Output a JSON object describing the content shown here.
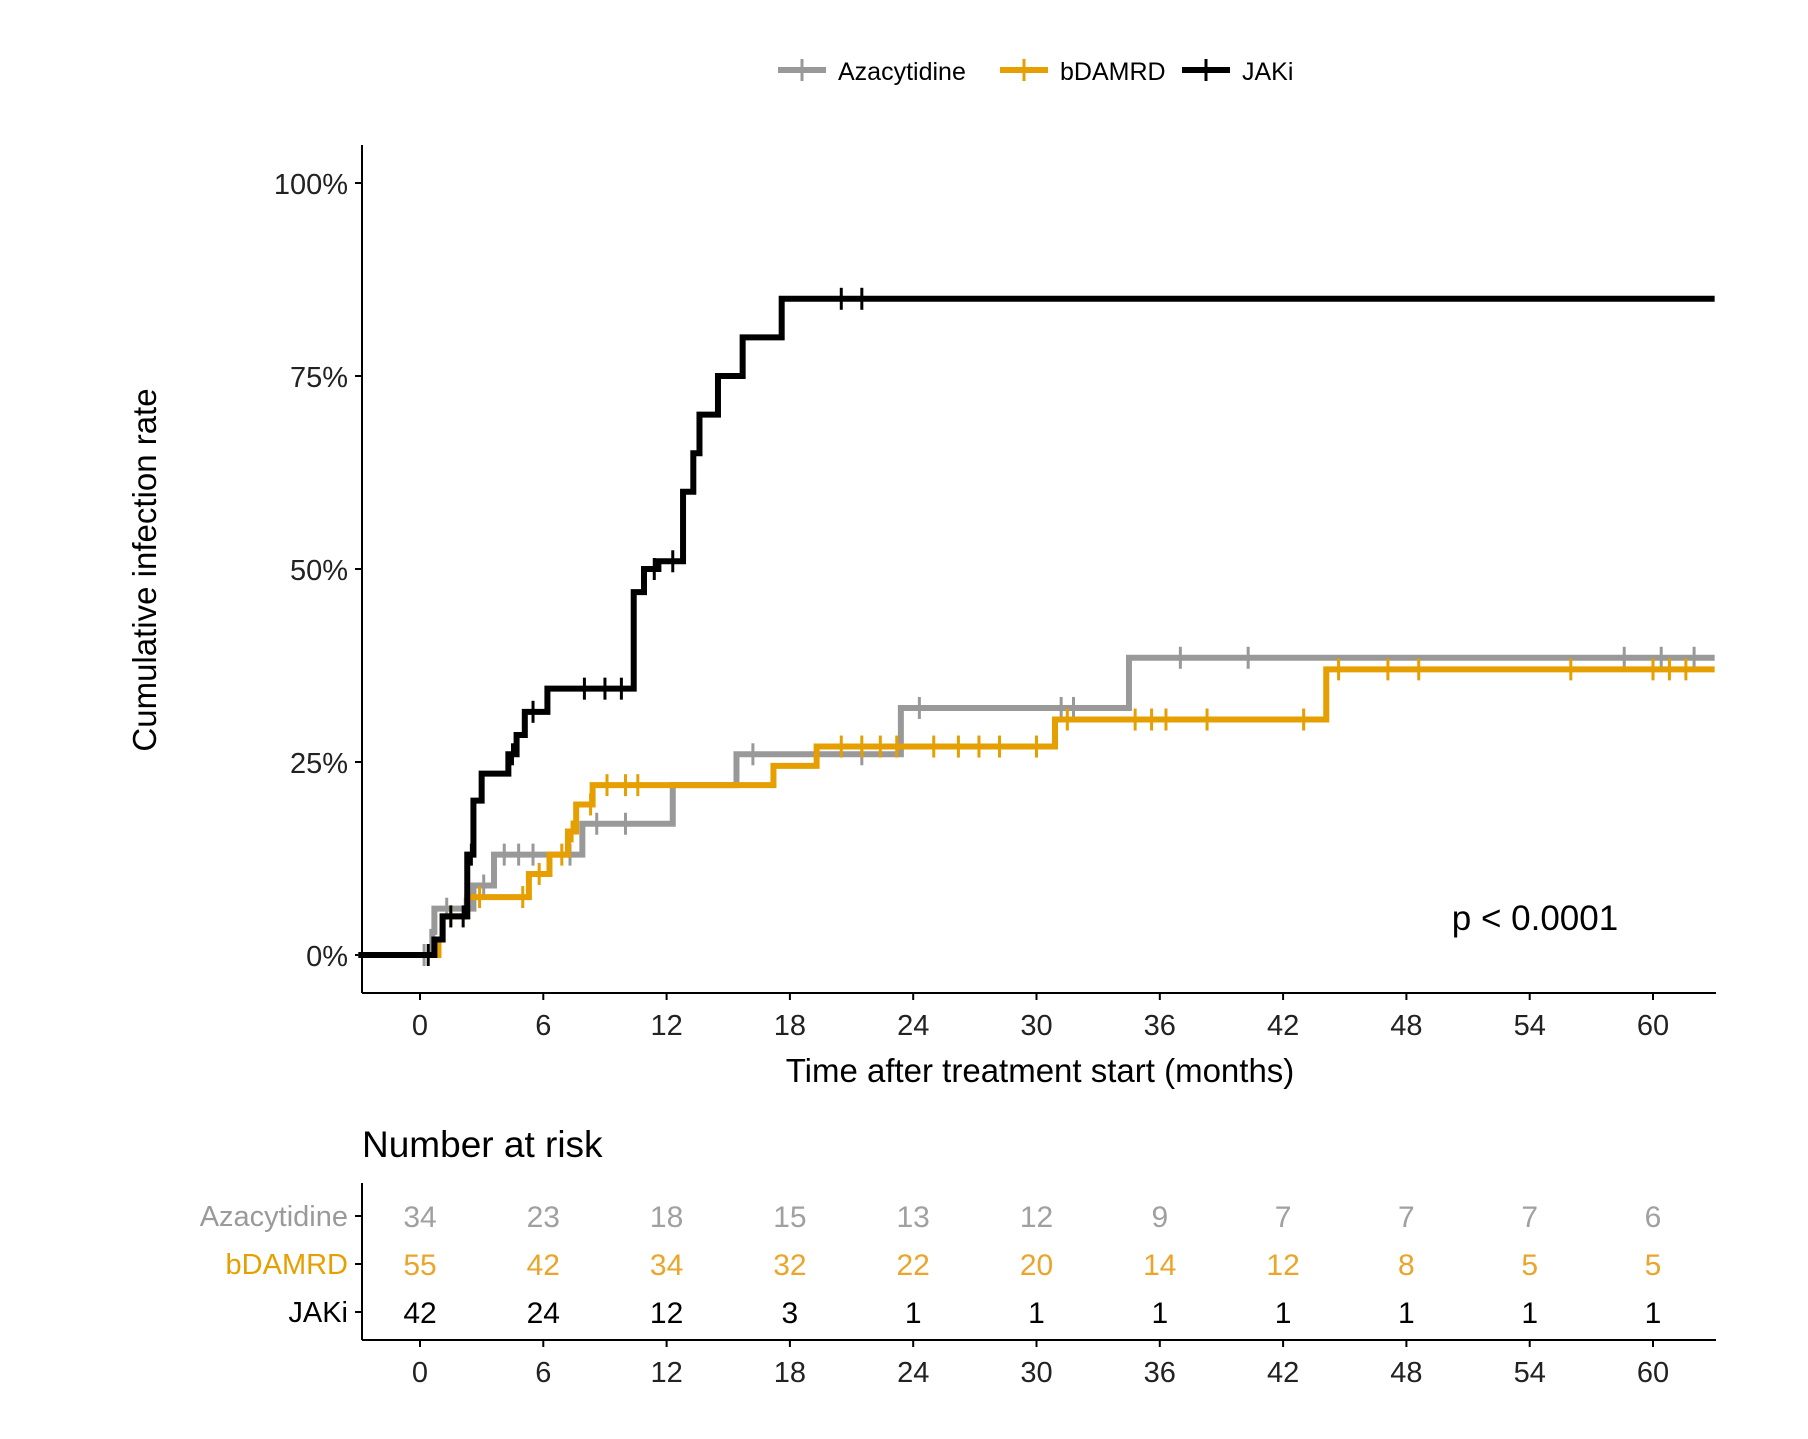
{
  "chart_data": {
    "type": "line",
    "subtype": "step (Kaplan-Meier cumulative incidence)",
    "xlabel": "Time after treatment start (months)",
    "ylabel": "Cumulative infection rate",
    "xlim": [
      -3,
      63
    ],
    "ylim": [
      -0.05,
      1.05
    ],
    "x_ticks": [
      0,
      6,
      12,
      18,
      24,
      30,
      36,
      42,
      48,
      54,
      60
    ],
    "y_ticks": [
      0,
      0.25,
      0.5,
      0.75,
      1.0
    ],
    "y_tick_labels": [
      "0%",
      "25%",
      "50%",
      "75%",
      "100%"
    ],
    "grid": false,
    "legend_position": "top",
    "annotation": "p < 0.0001",
    "series": [
      {
        "name": "Azacytidine",
        "color": "#999999",
        "steps": [
          [
            0,
            0
          ],
          [
            0.6,
            0.03
          ],
          [
            0.7,
            0.06
          ],
          [
            2.6,
            0.09
          ],
          [
            3.6,
            0.13
          ],
          [
            6.3,
            0.13
          ],
          [
            7.9,
            0.17
          ],
          [
            12.3,
            0.22
          ],
          [
            15.4,
            0.26
          ],
          [
            18.7,
            0.26
          ],
          [
            23.4,
            0.32
          ],
          [
            34.5,
            0.385
          ],
          [
            63,
            0.385
          ]
        ],
        "censor_x": [
          0.2,
          1.3,
          2.2,
          3.1,
          4.1,
          4.8,
          5.5,
          7.3,
          8.6,
          10.0,
          16.2,
          21.5,
          24.3,
          31.2,
          31.8,
          37.0,
          40.3,
          58.6,
          60.4,
          62.0
        ]
      },
      {
        "name": "bDAMRD",
        "color": "#E69F00",
        "steps": [
          [
            0,
            0
          ],
          [
            0.9,
            0.02
          ],
          [
            1.1,
            0.05
          ],
          [
            2.3,
            0.075
          ],
          [
            5.3,
            0.105
          ],
          [
            6.3,
            0.13
          ],
          [
            7.2,
            0.16
          ],
          [
            7.6,
            0.195
          ],
          [
            8.4,
            0.22
          ],
          [
            17.2,
            0.245
          ],
          [
            19.3,
            0.27
          ],
          [
            30.9,
            0.305
          ],
          [
            44.1,
            0.37
          ],
          [
            63,
            0.37
          ]
        ],
        "censor_x": [
          1.5,
          2.9,
          5.0,
          5.8,
          6.9,
          7.4,
          8.3,
          9.1,
          10.0,
          10.6,
          20.5,
          21.5,
          22.4,
          23.2,
          25.0,
          26.2,
          27.2,
          28.2,
          30.0,
          31.5,
          34.8,
          35.6,
          36.3,
          38.3,
          43.0,
          44.7,
          47.1,
          48.6,
          56.0,
          60.0,
          60.8,
          61.6
        ]
      },
      {
        "name": "JAKi",
        "color": "#000000",
        "steps": [
          [
            0,
            0
          ],
          [
            0.7,
            0.02
          ],
          [
            1.1,
            0.05
          ],
          [
            2.3,
            0.13
          ],
          [
            2.6,
            0.2
          ],
          [
            3.0,
            0.235
          ],
          [
            4.3,
            0.26
          ],
          [
            4.7,
            0.285
          ],
          [
            5.1,
            0.315
          ],
          [
            6.2,
            0.345
          ],
          [
            10.4,
            0.47
          ],
          [
            10.9,
            0.5
          ],
          [
            11.6,
            0.51
          ],
          [
            12.8,
            0.6
          ],
          [
            13.3,
            0.65
          ],
          [
            13.6,
            0.7
          ],
          [
            14.5,
            0.75
          ],
          [
            15.7,
            0.8
          ],
          [
            17.6,
            0.85
          ],
          [
            63,
            0.85
          ]
        ],
        "censor_x": [
          0.4,
          1.5,
          2.1,
          2.5,
          4.5,
          5.5,
          8.0,
          9.0,
          9.8,
          11.4,
          12.3,
          20.5,
          21.5
        ]
      }
    ],
    "risk_table": {
      "title": "Number at risk",
      "times": [
        "0",
        "6",
        "12",
        "18",
        "24",
        "30",
        "36",
        "42",
        "48",
        "54",
        "60"
      ],
      "rows": [
        {
          "name": "Azacytidine",
          "color": "#999999",
          "values": [
            "34",
            "23",
            "18",
            "15",
            "13",
            "12",
            "9",
            "7",
            "7",
            "7",
            "6"
          ]
        },
        {
          "name": "bDAMRD",
          "color": "#E69F00",
          "values": [
            "55",
            "42",
            "34",
            "32",
            "22",
            "20",
            "14",
            "12",
            "8",
            "5",
            "5"
          ]
        },
        {
          "name": "JAKi",
          "color": "#000000",
          "values": [
            "42",
            "24",
            "12",
            "3",
            "1",
            "1",
            "1",
            "1",
            "1",
            "1",
            "1"
          ]
        }
      ]
    }
  }
}
